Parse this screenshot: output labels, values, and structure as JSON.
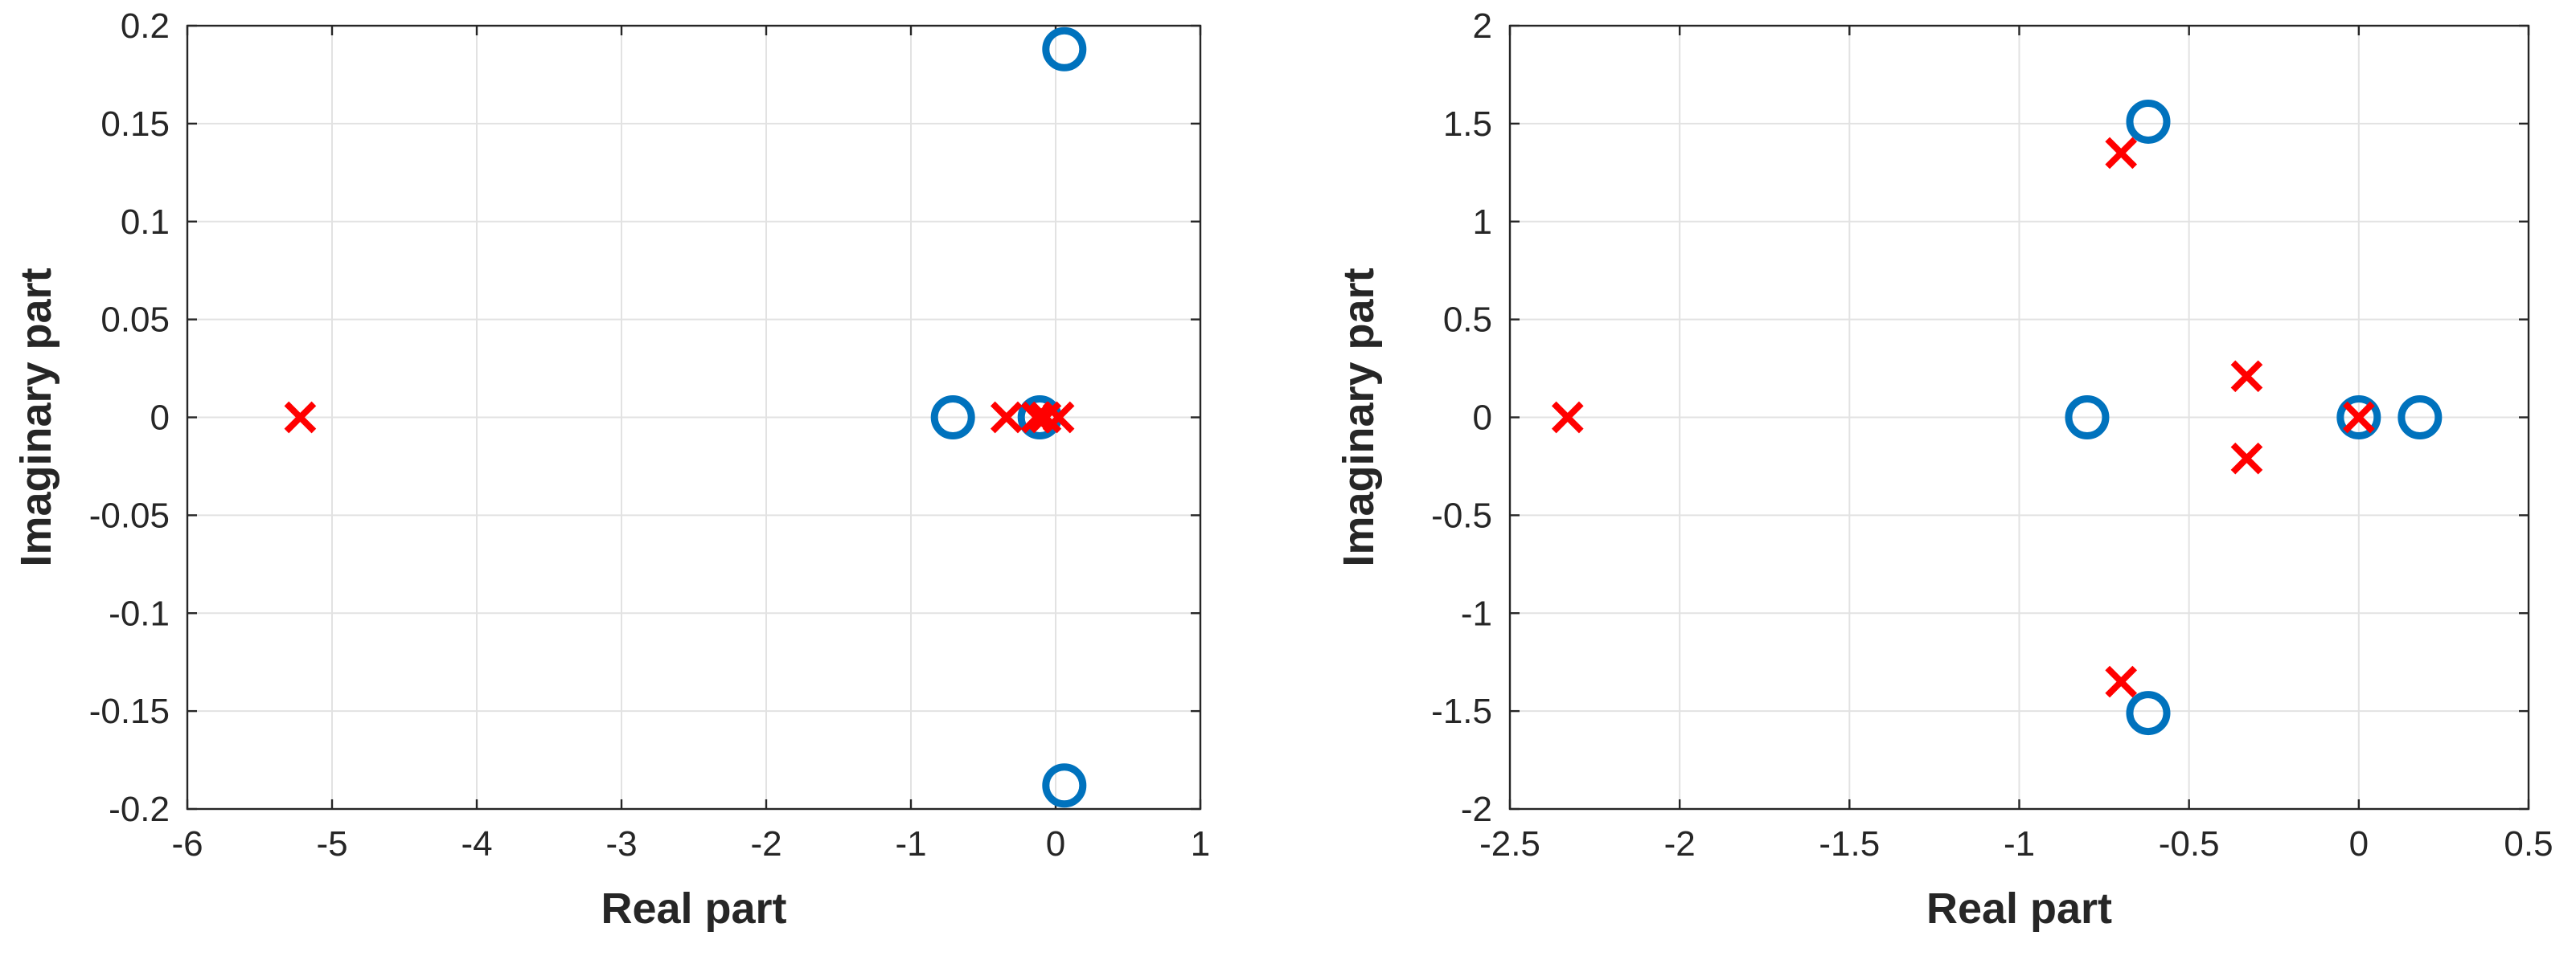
{
  "colors": {
    "zero": "#0072BD",
    "pole": "#FF0000",
    "axis": "#262626",
    "grid": "#E2E2E2"
  },
  "chart_data": [
    {
      "type": "scatter",
      "xlabel": "Real part",
      "ylabel": "Imaginary part",
      "xlim": [
        -6,
        1
      ],
      "ylim": [
        -0.2,
        0.2
      ],
      "xticks": [
        -6,
        -5,
        -4,
        -3,
        -2,
        -1,
        0,
        1
      ],
      "yticks": [
        -0.2,
        -0.15,
        -0.1,
        -0.05,
        0,
        0.05,
        0.1,
        0.15,
        0.2
      ],
      "xtick_labels": [
        "-6",
        "-5",
        "-4",
        "-3",
        "-2",
        "-1",
        "0",
        "1"
      ],
      "ytick_labels": [
        "-0.2",
        "-0.15",
        "-0.1",
        "-0.05",
        "0",
        "0.05",
        "0.1",
        "0.15",
        "0.2"
      ],
      "grid": true,
      "series": [
        {
          "marker": "o",
          "color": "#0072BD",
          "points": [
            [
              0.06,
              0.188
            ],
            [
              0.06,
              -0.188
            ],
            [
              -0.71,
              0
            ],
            [
              -0.11,
              0
            ]
          ]
        },
        {
          "marker": "x",
          "color": "#FF0000",
          "points": [
            [
              -5.22,
              0
            ],
            [
              -0.34,
              0
            ],
            [
              -0.13,
              0
            ],
            [
              -0.07,
              0
            ],
            [
              0.02,
              0
            ]
          ]
        }
      ]
    },
    {
      "type": "scatter",
      "xlabel": "Real part",
      "ylabel": "Imaginary part",
      "xlim": [
        -2.5,
        0.5
      ],
      "ylim": [
        -2,
        2
      ],
      "xticks": [
        -2.5,
        -2,
        -1.5,
        -1,
        -0.5,
        0,
        0.5
      ],
      "yticks": [
        -2,
        -1.5,
        -1,
        -0.5,
        0,
        0.5,
        1,
        1.5,
        2
      ],
      "xtick_labels": [
        "-2.5",
        "-2",
        "-1.5",
        "-1",
        "-0.5",
        "0",
        "0.5"
      ],
      "ytick_labels": [
        "-2",
        "-1.5",
        "-1",
        "-0.5",
        "0",
        "0.5",
        "1",
        "1.5",
        "2"
      ],
      "grid": true,
      "series": [
        {
          "marker": "o",
          "color": "#0072BD",
          "points": [
            [
              -0.62,
              1.51
            ],
            [
              -0.62,
              -1.51
            ],
            [
              -0.8,
              0
            ],
            [
              0,
              0
            ],
            [
              0.18,
              0
            ]
          ]
        },
        {
          "marker": "x",
          "color": "#FF0000",
          "points": [
            [
              -2.33,
              0
            ],
            [
              -0.7,
              1.35
            ],
            [
              -0.7,
              -1.35
            ],
            [
              -0.33,
              0.21
            ],
            [
              -0.33,
              -0.21
            ],
            [
              0,
              0
            ]
          ]
        }
      ]
    }
  ]
}
